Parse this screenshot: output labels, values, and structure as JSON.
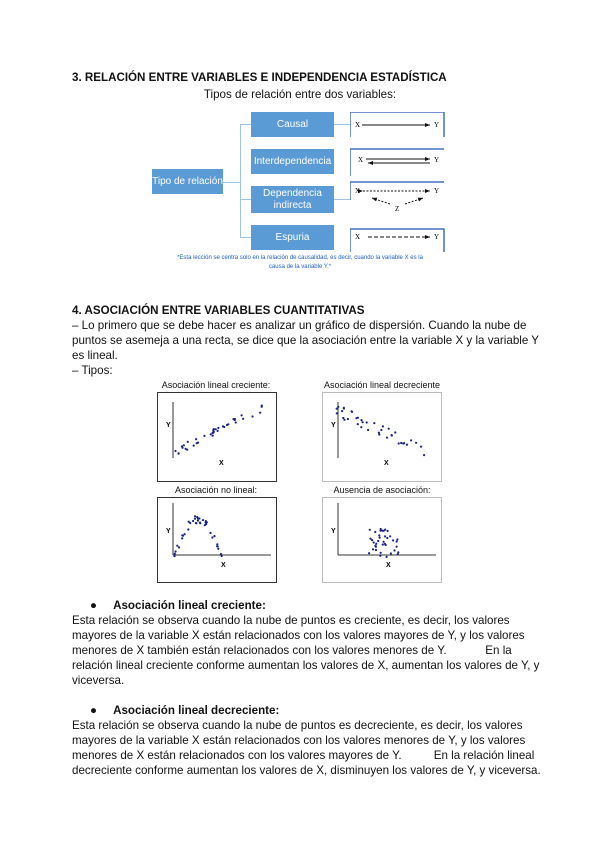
{
  "section3": {
    "heading": "3. RELACIÓN ENTRE VARIABLES E INDEPENDENCIA ESTADÍSTICA",
    "diagram_title": "Tipos de relación entre dos variables:",
    "root": "Tipo de relación",
    "types": [
      {
        "label": "Causal",
        "x": "X",
        "y": "Y"
      },
      {
        "label": "Interdependencia",
        "x": "X",
        "y": "Y"
      },
      {
        "label": "Dependencia indirecta",
        "x": "X",
        "y": "Y",
        "z": "Z"
      },
      {
        "label": "Espuria",
        "x": "X",
        "y": "Y"
      }
    ],
    "note_line1": "*Esta lección se centra solo en la relación de causalidad, es decir, cuando la variable X es la",
    "note_line2": "causa de la variable Y.*",
    "colors": {
      "box": "#5b9bd5",
      "note": "#1f5fbf"
    }
  },
  "section4": {
    "heading": "4. ASOCIACIÓN ENTRE VARIABLES CUANTITATIVAS",
    "intro": [
      "– Lo primero que se debe hacer es analizar un gráfico de dispersión. Cuando la nube de",
      "puntos se asemeja a una recta, se dice que la asociación entre la variable X y la variable Y",
      "es lineal.",
      "– Tipos:"
    ],
    "plots": [
      {
        "title": "Asociación lineal creciente:",
        "xlabel": "X",
        "ylabel": "Y"
      },
      {
        "title": "Asociación lineal decreciente",
        "xlabel": "X",
        "ylabel": "Y"
      },
      {
        "title": "Asociación no lineal:",
        "xlabel": "X",
        "ylabel": "Y"
      },
      {
        "title": "Ausencia de asociación:",
        "xlabel": "X",
        "ylabel": "Y"
      }
    ],
    "bullets": [
      {
        "title": "Asociación lineal creciente:",
        "lines": [
          "Esta relación se observa cuando la nube de puntos es creciente, es decir, los valores",
          "mayores de la variable X están relacionados con los valores mayores de Y, y los valores",
          "menores de X también están relacionados con los valores menores de Y.            En la",
          "relación lineal creciente conforme aumentan los valores de X, aumentan los valores de Y, y",
          "viceversa."
        ]
      },
      {
        "title": "Asociación lineal decreciente:",
        "lines": [
          "Esta relación se observa cuando la nube de puntos es decreciente, es decir, los valores",
          "mayores de la variable X están relacionados con los valores menores de Y, y los valores",
          "menores de X están relacionados con los valores mayores de Y.          En la relación lineal",
          "decreciente conforme aumentan los valores de X, disminuyen los valores de Y, y viceversa."
        ]
      }
    ]
  }
}
